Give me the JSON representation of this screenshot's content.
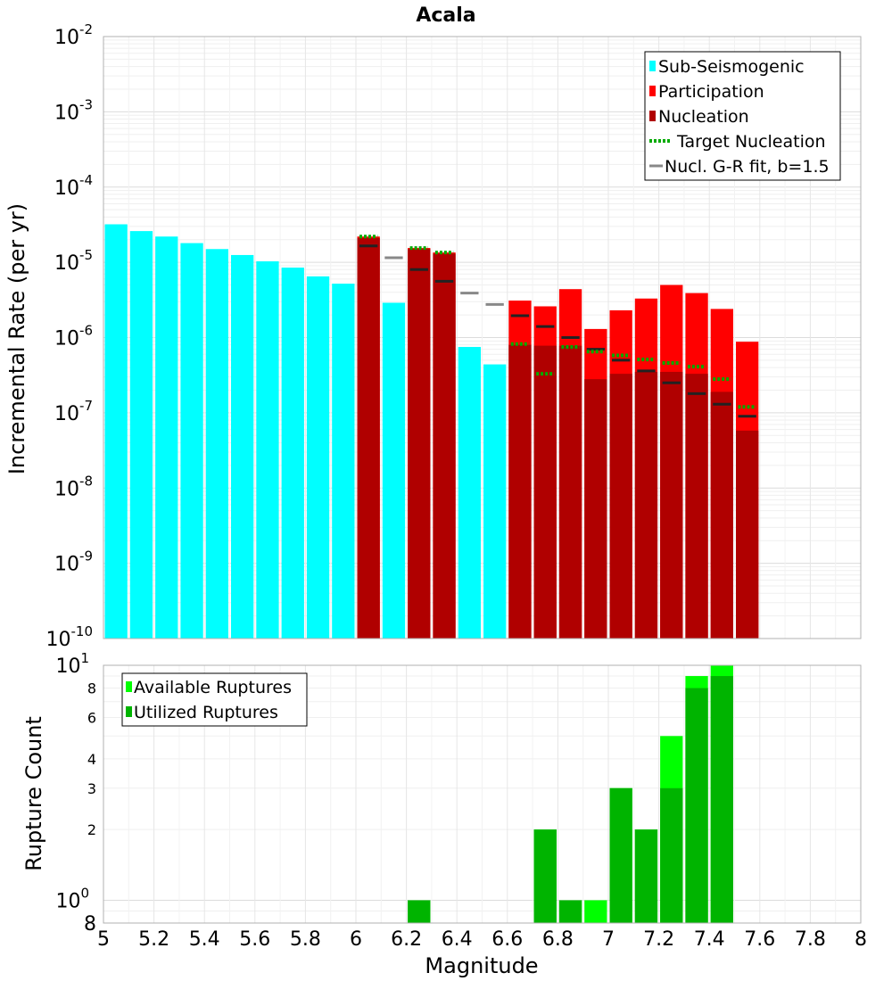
{
  "chart_data": [
    {
      "type": "bar",
      "title": "Acala",
      "ylabel": "Incremental Rate (per yr)",
      "xlabel": "",
      "xlim": [
        5,
        8
      ],
      "ylim": [
        1e-10,
        0.01
      ],
      "yscale": "log",
      "grid": true,
      "legend_position": "top-right",
      "y_tick_labels": [
        {
          "base": "10",
          "exp": "-2"
        },
        {
          "base": "10",
          "exp": "-3"
        },
        {
          "base": "10",
          "exp": "-4"
        },
        {
          "base": "10",
          "exp": "-5"
        },
        {
          "base": "10",
          "exp": "-6"
        },
        {
          "base": "10",
          "exp": "-7"
        },
        {
          "base": "10",
          "exp": "-8"
        },
        {
          "base": "10",
          "exp": "-9"
        },
        {
          "base": "10",
          "exp": "-10"
        }
      ],
      "legend": [
        {
          "label": "Sub-Seismogenic",
          "color": "#00ffff",
          "style": "box"
        },
        {
          "label": "Participation",
          "color": "#ff0000",
          "style": "box"
        },
        {
          "label": "Nucleation",
          "color": "#b00000",
          "style": "box"
        },
        {
          "label": "Target Nucleation",
          "color": "#00aa00",
          "style": "dotted"
        },
        {
          "label": "Nucl. G-R fit, b=1.5",
          "color": "#888888",
          "style": "line"
        }
      ],
      "bin_width": 0.1,
      "series": [
        {
          "name": "Sub-Seismogenic",
          "color": "#00ffff",
          "x": [
            5.05,
            5.15,
            5.25,
            5.35,
            5.45,
            5.55,
            5.65,
            5.75,
            5.85,
            5.95,
            6.15,
            6.45,
            6.55
          ],
          "values": [
            3.2e-05,
            2.6e-05,
            2.2e-05,
            1.8e-05,
            1.5e-05,
            1.25e-05,
            1.03e-05,
            8.5e-06,
            6.5e-06,
            5.2e-06,
            2.9e-06,
            7.5e-07,
            4.4e-07
          ]
        },
        {
          "name": "Participation",
          "color": "#ff0000",
          "x": [
            6.05,
            6.25,
            6.35,
            6.65,
            6.75,
            6.85,
            6.95,
            7.05,
            7.15,
            7.25,
            7.35,
            7.45,
            7.55
          ],
          "values": [
            2.2e-05,
            1.55e-05,
            1.35e-05,
            3.1e-06,
            2.6e-06,
            4.4e-06,
            1.3e-06,
            2.3e-06,
            3.3e-06,
            5e-06,
            3.9e-06,
            2.4e-06,
            8.8e-07
          ]
        },
        {
          "name": "Nucleation",
          "color": "#b00000",
          "x": [
            6.05,
            6.25,
            6.35,
            6.65,
            6.75,
            6.85,
            6.95,
            7.05,
            7.15,
            7.25,
            7.35,
            7.45,
            7.55
          ],
          "values": [
            2.1e-05,
            1.5e-05,
            1.3e-05,
            8e-07,
            7.8e-07,
            7.8e-07,
            2.8e-07,
            3.3e-07,
            3.5e-07,
            3.5e-07,
            3.3e-07,
            1.9e-07,
            5.8e-08
          ]
        },
        {
          "name": "Target Nucleation",
          "color": "#00aa00",
          "x": [
            6.05,
            6.25,
            6.35,
            6.65,
            6.75,
            6.85,
            6.95,
            7.05,
            7.15,
            7.25,
            7.35,
            7.45,
            7.55
          ],
          "values": [
            2.2e-05,
            1.55e-05,
            1.35e-05,
            8.2e-07,
            3.3e-07,
            7.5e-07,
            6.5e-07,
            5.8e-07,
            5.1e-07,
            4.6e-07,
            4.1e-07,
            2.8e-07,
            1.2e-07
          ]
        },
        {
          "name": "Nucl. G-R fit, b=1.5",
          "color": "#888888",
          "x": [
            6.05,
            6.15,
            6.25,
            6.35,
            6.45,
            6.55,
            6.65,
            6.75,
            6.85,
            6.95,
            7.05,
            7.15,
            7.25,
            7.35,
            7.45,
            7.55
          ],
          "values": [
            1.65e-05,
            1.15e-05,
            8e-06,
            5.6e-06,
            3.9e-06,
            2.75e-06,
            1.95e-06,
            1.4e-06,
            1e-06,
            7e-07,
            5e-07,
            3.6e-07,
            2.5e-07,
            1.8e-07,
            1.3e-07,
            9e-08
          ]
        }
      ]
    },
    {
      "type": "bar",
      "title": "",
      "xlabel": "Magnitude",
      "ylabel": "Rupture Count",
      "xlim": [
        5,
        8
      ],
      "ylim": [
        0.8,
        10
      ],
      "yscale": "log",
      "grid": true,
      "legend_position": "top-left",
      "x_tick_labels": [
        "5",
        "5.2",
        "5.4",
        "5.6",
        "5.8",
        "6",
        "6.2",
        "6.4",
        "6.6",
        "6.8",
        "7",
        "7.2",
        "7.4",
        "7.6",
        "7.8",
        "8"
      ],
      "y_major_tick_labels": [
        {
          "value": 10,
          "base": "10",
          "exp": "1"
        },
        {
          "value": 1,
          "base": "10",
          "exp": "0"
        }
      ],
      "y_minor_tick_labels": [
        {
          "value": 8,
          "label": "8"
        },
        {
          "value": 6,
          "label": "6"
        },
        {
          "value": 4,
          "label": "4"
        },
        {
          "value": 3,
          "label": "3"
        },
        {
          "value": 2,
          "label": "2"
        },
        {
          "value": 0.8,
          "label": "8"
        }
      ],
      "legend": [
        {
          "label": "Available Ruptures",
          "color": "#00ff00",
          "style": "box"
        },
        {
          "label": "Utilized Ruptures",
          "color": "#00b400",
          "style": "box"
        }
      ],
      "bin_width": 0.1,
      "series": [
        {
          "name": "Available Ruptures",
          "color": "#00ff00",
          "x": [
            6.25,
            6.75,
            6.85,
            6.95,
            7.05,
            7.15,
            7.25,
            7.35,
            7.45
          ],
          "values": [
            1,
            2,
            1,
            1,
            3,
            2,
            5,
            9,
            10
          ]
        },
        {
          "name": "Utilized Ruptures",
          "color": "#00b400",
          "x": [
            6.25,
            6.75,
            6.85,
            6.95,
            7.05,
            7.15,
            7.25,
            7.35,
            7.45
          ],
          "values": [
            1,
            2,
            1,
            0,
            3,
            2,
            3,
            8,
            9
          ]
        }
      ]
    }
  ]
}
